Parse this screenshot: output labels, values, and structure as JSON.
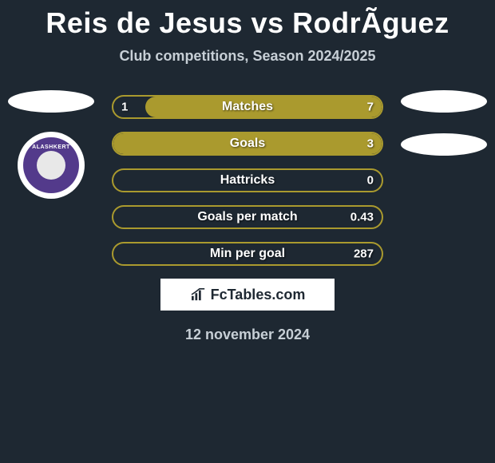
{
  "title": "Reis de Jesus vs RodrÃ­guez",
  "subtitle": "Club competitions, Season 2024/2025",
  "date": "12 november 2024",
  "attribution": "FcTables.com",
  "colors": {
    "background": "#1e2832",
    "bar_border": "#aa9a2e",
    "bar_fill": "#aa9a2e",
    "text_white": "#ffffff",
    "text_muted": "#c7cfd6"
  },
  "left_club": {
    "name": "ALASHKERT",
    "badge_bg": "#533a8b"
  },
  "bars": [
    {
      "label": "Matches",
      "left_val": "1",
      "right_val": "7",
      "fill_pct": 88
    },
    {
      "label": "Goals",
      "left_val": "",
      "right_val": "3",
      "fill_pct": 100
    },
    {
      "label": "Hattricks",
      "left_val": "",
      "right_val": "0",
      "fill_pct": 0
    },
    {
      "label": "Goals per match",
      "left_val": "",
      "right_val": "0.43",
      "fill_pct": 0
    },
    {
      "label": "Min per goal",
      "left_val": "",
      "right_val": "287",
      "fill_pct": 0
    }
  ]
}
